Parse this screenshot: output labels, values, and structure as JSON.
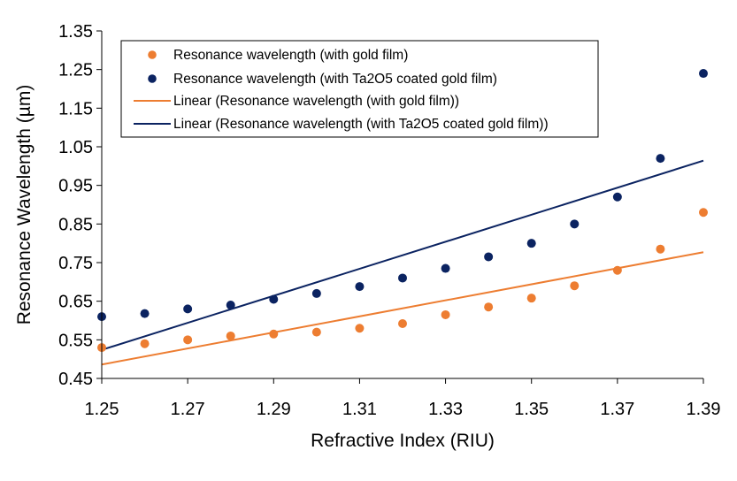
{
  "colors": {
    "series_gold": "#ED7D31",
    "series_ta2o5": "#0B2361",
    "trend_gold": "#ED7D31",
    "trend_ta2o5": "#0B2361",
    "axis": "#000000",
    "background": "#ffffff"
  },
  "chart_data": {
    "type": "scatter",
    "title": "",
    "xlabel": "Refractive Index (RIU)",
    "ylabel": "Resonance Wavelength (µm)",
    "xlim": [
      1.25,
      1.39
    ],
    "ylim": [
      0.45,
      1.35
    ],
    "xticks": [
      1.25,
      1.27,
      1.29,
      1.31,
      1.33,
      1.35,
      1.37,
      1.39
    ],
    "xtick_labels": [
      "1.25",
      "1.27",
      "1.29",
      "1.31",
      "1.33",
      "1.35",
      "1.37",
      "1.39"
    ],
    "yticks": [
      0.45,
      0.55,
      0.65,
      0.75,
      0.85,
      0.95,
      1.05,
      1.15,
      1.25,
      1.35
    ],
    "ytick_labels": [
      "0.45",
      "0.55",
      "0.65",
      "0.75",
      "0.85",
      "0.95",
      "1.05",
      "1.15",
      "1.25",
      "1.35"
    ],
    "grid": false,
    "legend_position": "top",
    "series": [
      {
        "name": "Resonance wavelength (with gold film)",
        "kind": "markers",
        "color_key": "series_gold",
        "x": [
          1.25,
          1.26,
          1.27,
          1.28,
          1.29,
          1.3,
          1.31,
          1.32,
          1.33,
          1.34,
          1.35,
          1.36,
          1.37,
          1.38,
          1.39
        ],
        "y": [
          0.53,
          0.54,
          0.55,
          0.56,
          0.565,
          0.57,
          0.58,
          0.592,
          0.615,
          0.635,
          0.658,
          0.69,
          0.73,
          0.785,
          0.88
        ]
      },
      {
        "name": "Resonance wavelength (with Ta2O5 coated gold film)",
        "kind": "markers",
        "color_key": "series_ta2o5",
        "x": [
          1.25,
          1.26,
          1.27,
          1.28,
          1.29,
          1.3,
          1.31,
          1.32,
          1.33,
          1.34,
          1.35,
          1.36,
          1.37,
          1.38,
          1.39
        ],
        "y": [
          0.61,
          0.618,
          0.63,
          0.64,
          0.655,
          0.67,
          0.688,
          0.71,
          0.735,
          0.765,
          0.8,
          0.85,
          0.92,
          1.02,
          1.24
        ]
      },
      {
        "name": "Linear (Resonance wavelength (with gold film))",
        "kind": "trendline",
        "color_key": "trend_gold",
        "x": [
          1.25,
          1.39
        ],
        "y": [
          0.486,
          0.777
        ]
      },
      {
        "name": "Linear (Resonance wavelength (with Ta2O5 coated gold film))",
        "kind": "trendline",
        "color_key": "trend_ta2o5",
        "x": [
          1.25,
          1.39
        ],
        "y": [
          0.524,
          1.014
        ]
      }
    ]
  }
}
